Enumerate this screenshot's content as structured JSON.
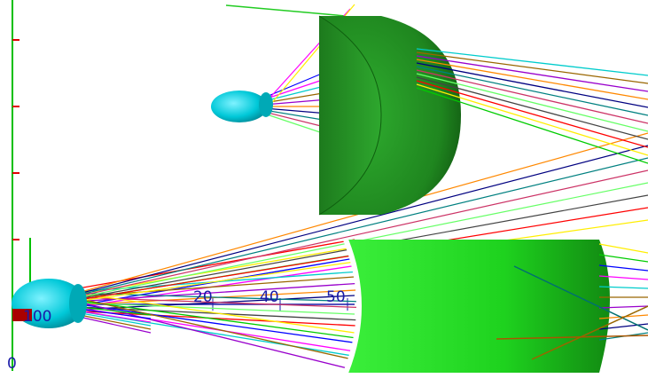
{
  "scene": {
    "axis_labels": [
      "20",
      "40",
      "50",
      "100",
      "0"
    ]
  },
  "colors": {
    "background": "#ffffff",
    "axis": "#00c000",
    "tick": "#e00000",
    "lens_dark": "#1f8f1f",
    "lens_bright": "#22dd22",
    "source": "#00c8d8",
    "label": "#1a1aa8"
  },
  "ray_colors": [
    "#ff0000",
    "#ffee00",
    "#00cc00",
    "#0000ff",
    "#ff00ff",
    "#00cccc",
    "#996600",
    "#9900cc",
    "#ff8800",
    "#000080",
    "#008080",
    "#cc3366",
    "#66ff66",
    "#444444"
  ]
}
